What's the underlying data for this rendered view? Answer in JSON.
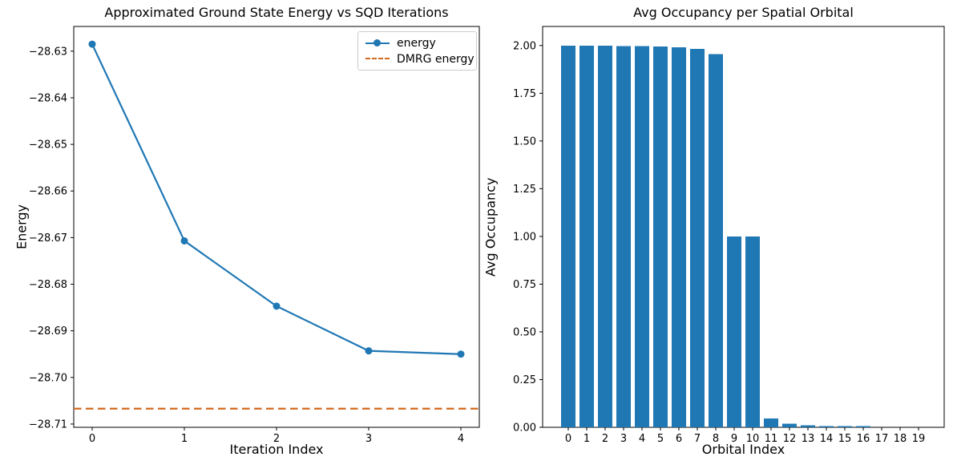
{
  "figure": {
    "background": "#ffffff"
  },
  "colors": {
    "series_blue": "#1f77b4",
    "dmrg_orange": "#d2691e",
    "axis": "#000000",
    "tick_text": "#000000"
  },
  "chart_data": [
    {
      "type": "line",
      "title": "Approximated Ground State Energy vs SQD Iterations",
      "xlabel": "Iteration Index",
      "ylabel": "Energy",
      "x": [
        0,
        1,
        2,
        3,
        4
      ],
      "series": [
        {
          "name": "energy",
          "values": [
            -28.6285,
            -28.6707,
            -28.6847,
            -28.6943,
            -28.695
          ],
          "color": "#1f77b4",
          "marker": "circle"
        }
      ],
      "hline": {
        "name": "DMRG energy",
        "value": -28.7067,
        "style": "dashed",
        "color": "#d2691e"
      },
      "xlim": [
        -0.2,
        4.2
      ],
      "ylim": [
        -28.7107,
        -28.6247
      ],
      "xticks": [
        0,
        1,
        2,
        3,
        4
      ],
      "xtick_labels": [
        "0",
        "1",
        "2",
        "3",
        "4"
      ],
      "ytick_values": [
        -28.63,
        -28.64,
        -28.65,
        -28.66,
        -28.67,
        -28.68,
        -28.69,
        -28.7,
        -28.71
      ],
      "ytick_labels": [
        "−28.63",
        "−28.64",
        "−28.65",
        "−28.66",
        "−28.67",
        "−28.68",
        "−28.69",
        "−28.70",
        "−28.71"
      ],
      "grid": false,
      "legend_position": "upper right"
    },
    {
      "type": "bar",
      "title": "Avg Occupancy per Spatial Orbital",
      "xlabel": "Orbital Index",
      "ylabel": "Avg Occupancy",
      "categories": [
        "0",
        "1",
        "2",
        "3",
        "4",
        "5",
        "6",
        "7",
        "8",
        "9",
        "10",
        "11",
        "12",
        "13",
        "14",
        "15",
        "16",
        "17",
        "18",
        "19"
      ],
      "values": [
        2.0,
        2.0,
        2.0,
        1.998,
        1.997,
        1.995,
        1.99,
        1.983,
        1.955,
        1.0,
        1.0,
        0.047,
        0.019,
        0.01,
        0.006,
        0.006,
        0.006,
        0.001,
        0.0005,
        0.0003
      ],
      "bar_color": "#1f77b4",
      "xlim": [
        -1.39,
        20.39
      ],
      "ylim": [
        0,
        2.1
      ],
      "ytick_values": [
        0.0,
        0.25,
        0.5,
        0.75,
        1.0,
        1.25,
        1.5,
        1.75,
        2.0
      ],
      "ytick_labels": [
        "0.00",
        "0.25",
        "0.50",
        "0.75",
        "1.00",
        "1.25",
        "1.50",
        "1.75",
        "2.00"
      ],
      "grid": false,
      "legend_position": "none"
    }
  ]
}
